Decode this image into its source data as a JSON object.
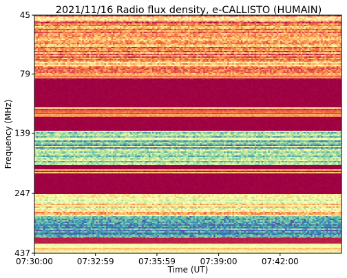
{
  "chart_data": {
    "type": "heatmap",
    "title": "2021/11/16  Radio flux density, e-CALLISTO (HUMAIN)",
    "xlabel": "Time (UT)",
    "ylabel": "Frequency (MHz)",
    "x_ticks": [
      "07:30:00",
      "07:32:59",
      "07:35:59",
      "07:39:00",
      "07:42:00"
    ],
    "x_tick_seconds": [
      0,
      179,
      359,
      540,
      720
    ],
    "xlim_seconds": [
      0,
      900
    ],
    "y_ticks": [
      "45",
      "79",
      "139",
      "247",
      "437"
    ],
    "y_tick_values": [
      45,
      79,
      139,
      247,
      437
    ],
    "ylim": [
      45,
      437
    ],
    "y_axis_inverted": true,
    "y_scale": "log",
    "colormap": "Spectral",
    "colors": {
      "low": "#9e0142",
      "mid": "#f46d43",
      "high": "#fee08b",
      "peak": "#abdda4",
      "extreme": "#3288bd"
    },
    "bands": [
      {
        "from_mhz": 45,
        "to_mhz": 79,
        "level": 0.28,
        "pattern": "striped-noisy"
      },
      {
        "from_mhz": 79,
        "to_mhz": 84,
        "level": 0.14,
        "pattern": "striped"
      },
      {
        "from_mhz": 84,
        "to_mhz": 108,
        "level": 0.0,
        "pattern": "uniform"
      },
      {
        "from_mhz": 108,
        "to_mhz": 119,
        "level": 0.25,
        "pattern": "striped"
      },
      {
        "from_mhz": 119,
        "to_mhz": 136,
        "level": 0.0,
        "pattern": "uniform"
      },
      {
        "from_mhz": 136,
        "to_mhz": 188,
        "level": 0.72,
        "pattern": "striped-noisy"
      },
      {
        "from_mhz": 188,
        "to_mhz": 197,
        "level": 0.0,
        "pattern": "uniform"
      },
      {
        "from_mhz": 197,
        "to_mhz": 204,
        "level": 0.2,
        "pattern": "striped"
      },
      {
        "from_mhz": 204,
        "to_mhz": 247,
        "level": 0.0,
        "pattern": "uniform"
      },
      {
        "from_mhz": 247,
        "to_mhz": 305,
        "level": 0.45,
        "pattern": "striped-noisy"
      },
      {
        "from_mhz": 305,
        "to_mhz": 380,
        "level": 0.85,
        "pattern": "bursty"
      },
      {
        "from_mhz": 380,
        "to_mhz": 400,
        "level": 0.05,
        "pattern": "uniform"
      },
      {
        "from_mhz": 400,
        "to_mhz": 437,
        "level": 0.4,
        "pattern": "striped"
      }
    ]
  }
}
